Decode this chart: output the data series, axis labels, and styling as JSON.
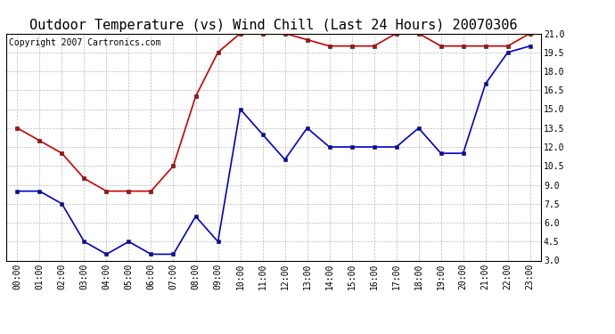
{
  "title": "Outdoor Temperature (vs) Wind Chill (Last 24 Hours) 20070306",
  "copyright_text": "Copyright 2007 Cartronics.com",
  "x_labels": [
    "00:00",
    "01:00",
    "02:00",
    "03:00",
    "04:00",
    "05:00",
    "06:00",
    "07:00",
    "08:00",
    "09:00",
    "10:00",
    "11:00",
    "12:00",
    "13:00",
    "14:00",
    "15:00",
    "16:00",
    "17:00",
    "18:00",
    "19:00",
    "20:00",
    "21:00",
    "22:00",
    "23:00"
  ],
  "temp_data": [
    13.5,
    12.5,
    11.5,
    9.5,
    8.5,
    8.5,
    8.5,
    10.5,
    16.0,
    19.5,
    21.0,
    21.0,
    21.0,
    20.5,
    20.0,
    20.0,
    20.0,
    21.0,
    21.0,
    20.0,
    20.0,
    20.0,
    20.0,
    21.0
  ],
  "wind_chill_data": [
    8.5,
    8.5,
    7.5,
    4.5,
    3.5,
    4.5,
    3.5,
    3.5,
    6.5,
    4.5,
    15.0,
    13.0,
    11.0,
    13.5,
    12.0,
    12.0,
    12.0,
    12.0,
    13.5,
    11.5,
    11.5,
    17.0,
    19.5,
    20.0
  ],
  "temp_color": "#cc0000",
  "wind_chill_color": "#0000cc",
  "ylim": [
    3.0,
    21.0
  ],
  "yticks": [
    3.0,
    4.5,
    6.0,
    7.5,
    9.0,
    10.5,
    12.0,
    13.5,
    15.0,
    16.5,
    18.0,
    19.5,
    21.0
  ],
  "background_color": "#ffffff",
  "grid_color": "#bbbbbb",
  "title_fontsize": 11,
  "copyright_fontsize": 7,
  "tick_fontsize": 7,
  "figwidth": 6.9,
  "figheight": 3.75,
  "dpi": 100
}
